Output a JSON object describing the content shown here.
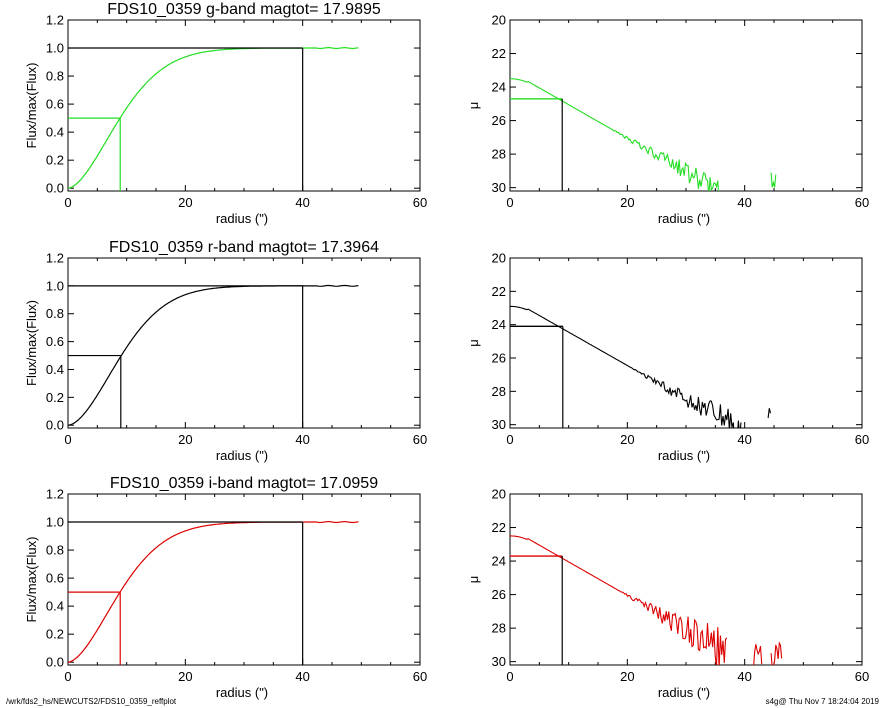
{
  "footer": {
    "path": "/wrk/fds2_hs/NEWCUTS2/FDS10_0359_reffplot",
    "stamp": "s4g@  Thu Nov  7 18:24:04 2019"
  },
  "chart_data": [
    {
      "id": "g-growth",
      "type": "line",
      "title": "FDS10_0359 g-band  magtot=      17.9895",
      "xlabel": "radius (\")",
      "ylabel": "Flux/max(Flux)",
      "xlim": [
        0,
        60
      ],
      "ylim": [
        -0.02,
        1.2
      ],
      "xticks": [
        0,
        20,
        40,
        60
      ],
      "yticks": [
        0.0,
        0.2,
        0.4,
        0.6,
        0.8,
        1.0,
        1.2
      ],
      "color": "#22dd22",
      "growth": {
        "scale": 11.0,
        "power": 1.7,
        "max_r": 49.5
      },
      "half_light": {
        "x": 8.9,
        "y": 0.5
      },
      "total_radius": {
        "x": 40.0,
        "y": 1.0
      }
    },
    {
      "id": "g-profile",
      "type": "line",
      "xlabel": "radius (\")",
      "ylabel": "μ",
      "xlim": [
        0,
        60
      ],
      "ylim": [
        30.2,
        20
      ],
      "reversed_y": true,
      "xticks": [
        0,
        20,
        40,
        60
      ],
      "yticks": [
        20,
        22,
        24,
        26,
        28,
        30
      ],
      "color": "#22dd22",
      "profile": {
        "mu0": 23.5,
        "slope": 0.2,
        "noise_start": 16,
        "noise_amp": 0.9,
        "end_r": 36,
        "extra_segments": [
          [
            44.5,
            45.5
          ]
        ]
      },
      "effective": {
        "x": 8.9,
        "y": 24.7
      }
    },
    {
      "id": "r-growth",
      "type": "line",
      "title": "FDS10_0359 r-band  magtot=      17.3964",
      "xlabel": "radius (\")",
      "ylabel": "Flux/max(Flux)",
      "xlim": [
        0,
        60
      ],
      "ylim": [
        -0.02,
        1.2
      ],
      "xticks": [
        0,
        20,
        40,
        60
      ],
      "yticks": [
        0.0,
        0.2,
        0.4,
        0.6,
        0.8,
        1.0,
        1.2
      ],
      "color": "#000000",
      "growth": {
        "scale": 11.2,
        "power": 1.75,
        "max_r": 49.5
      },
      "half_light": {
        "x": 9.0,
        "y": 0.5
      },
      "total_radius": {
        "x": 40.0,
        "y": 1.0
      }
    },
    {
      "id": "r-profile",
      "type": "line",
      "xlabel": "radius (\")",
      "ylabel": "μ",
      "xlim": [
        0,
        60
      ],
      "ylim": [
        30.2,
        20
      ],
      "reversed_y": true,
      "xticks": [
        0,
        20,
        40,
        60
      ],
      "yticks": [
        20,
        22,
        24,
        26,
        28,
        30
      ],
      "color": "#000000",
      "profile": {
        "mu0": 22.9,
        "slope": 0.2,
        "noise_start": 20,
        "noise_amp": 1.1,
        "end_r": 39.5,
        "extra_segments": [
          [
            44,
            44.6
          ]
        ]
      },
      "effective": {
        "x": 9.0,
        "y": 24.1
      }
    },
    {
      "id": "i-growth",
      "type": "line",
      "title": "FDS10_0359 i-band  magtot=      17.0959",
      "xlabel": "radius (\")",
      "ylabel": "Flux/max(Flux)",
      "xlim": [
        0,
        60
      ],
      "ylim": [
        -0.02,
        1.2
      ],
      "xticks": [
        0,
        20,
        40,
        60
      ],
      "yticks": [
        0.0,
        0.2,
        0.4,
        0.6,
        0.8,
        1.0,
        1.2
      ],
      "color": "#dd0000",
      "growth": {
        "scale": 11.0,
        "power": 1.7,
        "max_r": 49.5
      },
      "half_light": {
        "x": 8.9,
        "y": 0.5
      },
      "total_radius": {
        "x": 40.0,
        "y": 1.0
      }
    },
    {
      "id": "i-profile",
      "type": "line",
      "xlabel": "radius (\")",
      "ylabel": "μ",
      "xlim": [
        0,
        60
      ],
      "ylim": [
        30.2,
        20
      ],
      "reversed_y": true,
      "xticks": [
        0,
        20,
        40,
        60
      ],
      "yticks": [
        20,
        22,
        24,
        26,
        28,
        30
      ],
      "color": "#dd0000",
      "profile": {
        "mu0": 22.5,
        "slope": 0.2,
        "noise_start": 18,
        "noise_amp": 1.5,
        "end_r": 37,
        "extra_segments": [
          [
            41.5,
            43
          ],
          [
            44.5,
            46.5
          ]
        ]
      },
      "effective": {
        "x": 8.9,
        "y": 23.7
      }
    }
  ]
}
